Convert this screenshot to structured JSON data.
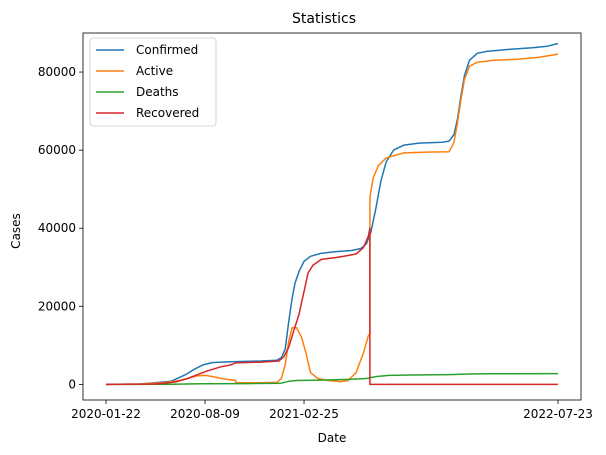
{
  "chart_data": {
    "type": "line",
    "title": "Statistics",
    "xlabel": "Date",
    "ylabel": "Cases",
    "x_range": [
      "2020-01-22",
      "2022-07-23"
    ],
    "xticks": [
      "2020-01-22",
      "2020-08-09",
      "2021-02-25",
      "2022-07-23"
    ],
    "ylim": [
      -4000,
      90000
    ],
    "yticks": [
      0,
      20000,
      40000,
      60000,
      80000
    ],
    "grid": false,
    "legend": "top-left",
    "series": [
      {
        "name": "Confirmed",
        "color": "#1f77b4",
        "points": [
          [
            "2020-01-22",
            0
          ],
          [
            "2020-04-01",
            100
          ],
          [
            "2020-06-01",
            800
          ],
          [
            "2020-07-01",
            2500
          ],
          [
            "2020-07-20",
            4000
          ],
          [
            "2020-08-05",
            5000
          ],
          [
            "2020-08-25",
            5600
          ],
          [
            "2020-09-30",
            5800
          ],
          [
            "2020-11-30",
            6000
          ],
          [
            "2021-01-01",
            6200
          ],
          [
            "2021-01-10",
            6800
          ],
          [
            "2021-01-18",
            9000
          ],
          [
            "2021-01-25",
            16000
          ],
          [
            "2021-02-01",
            22000
          ],
          [
            "2021-02-07",
            26000
          ],
          [
            "2021-02-15",
            29000
          ],
          [
            "2021-02-25",
            31500
          ],
          [
            "2021-03-10",
            32800
          ],
          [
            "2021-04-01",
            33600
          ],
          [
            "2021-05-01",
            34000
          ],
          [
            "2021-06-01",
            34300
          ],
          [
            "2021-06-20",
            34800
          ],
          [
            "2021-07-01",
            36000
          ],
          [
            "2021-07-10",
            39000
          ],
          [
            "2021-07-20",
            45000
          ],
          [
            "2021-07-30",
            52000
          ],
          [
            "2021-08-10",
            57000
          ],
          [
            "2021-08-25",
            60000
          ],
          [
            "2021-09-15",
            61300
          ],
          [
            "2021-10-15",
            61800
          ],
          [
            "2021-12-01",
            62000
          ],
          [
            "2021-12-15",
            62300
          ],
          [
            "2021-12-25",
            64000
          ],
          [
            "2022-01-01",
            68000
          ],
          [
            "2022-01-08",
            74000
          ],
          [
            "2022-01-15",
            79000
          ],
          [
            "2022-01-25",
            83000
          ],
          [
            "2022-02-10",
            84800
          ],
          [
            "2022-03-01",
            85300
          ],
          [
            "2022-04-15",
            85800
          ],
          [
            "2022-06-01",
            86200
          ],
          [
            "2022-07-01",
            86600
          ],
          [
            "2022-07-23",
            87300
          ]
        ]
      },
      {
        "name": "Active",
        "color": "#ff7f0e",
        "points": [
          [
            "2020-01-22",
            0
          ],
          [
            "2020-04-01",
            100
          ],
          [
            "2020-05-15",
            400
          ],
          [
            "2020-06-15",
            900
          ],
          [
            "2020-07-10",
            1700
          ],
          [
            "2020-07-25",
            2200
          ],
          [
            "2020-08-10",
            2300
          ],
          [
            "2020-08-25",
            2000
          ],
          [
            "2020-09-15",
            1400
          ],
          [
            "2020-10-10",
            1000
          ],
          [
            "2020-10-10",
            400
          ],
          [
            "2020-11-30",
            400
          ],
          [
            "2021-01-01",
            500
          ],
          [
            "2021-01-10",
            1500
          ],
          [
            "2021-01-18",
            5000
          ],
          [
            "2021-01-25",
            11000
          ],
          [
            "2021-02-01",
            14500
          ],
          [
            "2021-02-10",
            14500
          ],
          [
            "2021-02-20",
            12000
          ],
          [
            "2021-03-01",
            8000
          ],
          [
            "2021-03-10",
            3000
          ],
          [
            "2021-03-25",
            1500
          ],
          [
            "2021-04-15",
            1000
          ],
          [
            "2021-05-10",
            700
          ],
          [
            "2021-05-25",
            1000
          ],
          [
            "2021-06-10",
            3000
          ],
          [
            "2021-06-25",
            8000
          ],
          [
            "2021-07-05",
            12500
          ],
          [
            "2021-07-08",
            13000
          ],
          [
            "2021-07-08",
            48000
          ],
          [
            "2021-07-15",
            53000
          ],
          [
            "2021-07-25",
            56000
          ],
          [
            "2021-08-10",
            58000
          ],
          [
            "2021-09-15",
            59300
          ],
          [
            "2021-11-01",
            59500
          ],
          [
            "2021-12-15",
            59600
          ],
          [
            "2021-12-25",
            62000
          ],
          [
            "2022-01-01",
            67000
          ],
          [
            "2022-01-08",
            73000
          ],
          [
            "2022-01-15",
            78000
          ],
          [
            "2022-01-25",
            81500
          ],
          [
            "2022-02-10",
            82500
          ],
          [
            "2022-03-15",
            83000
          ],
          [
            "2022-05-01",
            83300
          ],
          [
            "2022-06-15",
            83800
          ],
          [
            "2022-07-23",
            84600
          ]
        ]
      },
      {
        "name": "Deaths",
        "color": "#2ca02c",
        "points": [
          [
            "2020-01-22",
            0
          ],
          [
            "2020-06-01",
            50
          ],
          [
            "2020-08-01",
            150
          ],
          [
            "2020-11-01",
            200
          ],
          [
            "2021-01-10",
            300
          ],
          [
            "2021-01-25",
            800
          ],
          [
            "2021-02-10",
            1000
          ],
          [
            "2021-04-01",
            1100
          ],
          [
            "2021-06-01",
            1300
          ],
          [
            "2021-07-01",
            1500
          ],
          [
            "2021-07-20",
            2000
          ],
          [
            "2021-08-15",
            2300
          ],
          [
            "2021-10-01",
            2400
          ],
          [
            "2021-12-15",
            2500
          ],
          [
            "2022-01-25",
            2650
          ],
          [
            "2022-03-01",
            2700
          ],
          [
            "2022-07-23",
            2750
          ]
        ]
      },
      {
        "name": "Recovered",
        "color": "#d62728",
        "points": [
          [
            "2020-01-22",
            0
          ],
          [
            "2020-05-01",
            100
          ],
          [
            "2020-06-10",
            600
          ],
          [
            "2020-07-05",
            1500
          ],
          [
            "2020-07-25",
            2500
          ],
          [
            "2020-08-15",
            3500
          ],
          [
            "2020-09-10",
            4500
          ],
          [
            "2020-09-30",
            5000
          ],
          [
            "2020-10-10",
            5500
          ],
          [
            "2020-12-01",
            5700
          ],
          [
            "2021-01-05",
            6000
          ],
          [
            "2021-01-15",
            7000
          ],
          [
            "2021-01-25",
            9500
          ],
          [
            "2021-02-05",
            14000
          ],
          [
            "2021-02-15",
            18000
          ],
          [
            "2021-02-20",
            21000
          ],
          [
            "2021-02-28",
            25500
          ],
          [
            "2021-03-05",
            28500
          ],
          [
            "2021-03-15",
            30500
          ],
          [
            "2021-04-01",
            32000
          ],
          [
            "2021-05-01",
            32500
          ],
          [
            "2021-05-25",
            33000
          ],
          [
            "2021-06-10",
            33400
          ],
          [
            "2021-06-25",
            35000
          ],
          [
            "2021-07-05",
            38000
          ],
          [
            "2021-07-08",
            40000
          ],
          [
            "2021-07-08",
            0
          ],
          [
            "2022-07-23",
            0
          ]
        ]
      }
    ]
  }
}
